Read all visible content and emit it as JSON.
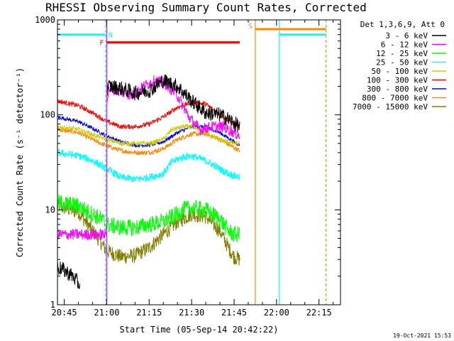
{
  "chart_data": {
    "type": "line",
    "title": "RHESSI Observing Summary Count Rates, Corrected",
    "xlabel": "Start Time (05-Sep-14 20:42:22)",
    "ylabel": "Corrected Count Rate (s⁻¹ detector⁻¹)",
    "yscale": "log",
    "ylim": [
      1,
      1000
    ],
    "xlim_minutes": [
      -2.4,
      97.6
    ],
    "x_ticks": [
      {
        "label": "20:45",
        "min": 0
      },
      {
        "label": "21:00",
        "min": 15
      },
      {
        "label": "21:15",
        "min": 30
      },
      {
        "label": "21:30",
        "min": 45
      },
      {
        "label": "21:45",
        "min": 60
      },
      {
        "label": "22:00",
        "min": 75
      },
      {
        "label": "22:15",
        "min": 90
      }
    ],
    "y_ticks": [
      {
        "label": "1",
        "value": 1
      },
      {
        "label": "10",
        "value": 10
      },
      {
        "label": "100",
        "value": 100
      },
      {
        "label": "1000",
        "value": 1000
      }
    ],
    "legend_title": "Det 1,3,6,9, Att 0",
    "legend_position": "right",
    "series": [
      {
        "name": "3 - 6 keV",
        "color": "#000000",
        "segments": [
          {
            "x": [
              -2.4,
              0,
              3,
              5.5
            ],
            "y": [
              2.5,
              2.3,
              2.0,
              1.6
            ]
          },
          {
            "x": [
              15,
              16,
              20,
              25,
              30,
              35,
              40,
              45,
              50,
              55,
              58,
              62
            ],
            "y": [
              190,
              200,
              190,
              170,
              180,
              230,
              200,
              140,
              105,
              100,
              90,
              75
            ]
          }
        ]
      },
      {
        "name": "6 - 12 keV",
        "color": "#ff00ff",
        "segments": [
          {
            "x": [
              -2.4,
              15
            ],
            "y": [
              5.5,
              5.5
            ]
          },
          {
            "x": [
              15,
              16,
              20,
              24,
              28,
              32,
              36,
              40,
              44,
              48,
              52,
              56,
              60,
              62
            ],
            "y": [
              150,
              190,
              175,
              160,
              200,
              230,
              210,
              160,
              95,
              70,
              75,
              75,
              65,
              60
            ]
          }
        ]
      },
      {
        "name": "12 - 25 keV",
        "color": "#00ff00",
        "segments": [
          {
            "x": [
              -2.4,
              5,
              10,
              13,
              15
            ],
            "y": [
              12,
              11,
              9,
              8,
              7
            ]
          },
          {
            "x": [
              15,
              20,
              25,
              30,
              35,
              40,
              42,
              45,
              50,
              55,
              58,
              60,
              62
            ],
            "y": [
              7,
              6.5,
              6.5,
              7,
              7.5,
              9,
              10,
              10.5,
              10,
              8,
              6,
              5.5,
              5.5
            ]
          }
        ]
      },
      {
        "name": "25 - 50 keV",
        "color": "#00ffff",
        "segments": [
          {
            "x": [
              -2.4,
              5,
              10,
              15,
              20,
              25,
              30,
              35,
              38,
              42,
              45,
              50,
              55,
              58,
              62
            ],
            "y": [
              40,
              37,
              33,
              27,
              22,
              21,
              22,
              24,
              32,
              36,
              37,
              33,
              27,
              24,
              22
            ]
          }
        ]
      },
      {
        "name": "50 - 100 keV",
        "color": "#cccc00",
        "segments": [
          {
            "x": [
              -2.4,
              5,
              10,
              15,
              20,
              25,
              30,
              35,
              38,
              42,
              45,
              50,
              55,
              60,
              62
            ],
            "y": [
              75,
              70,
              62,
              55,
              50,
              50,
              50,
              55,
              70,
              75,
              75,
              65,
              55,
              50,
              50
            ]
          }
        ]
      },
      {
        "name": "100 - 300 keV",
        "color": "#ff0000",
        "segments": [
          {
            "x": [
              -2.4,
              5,
              10,
              15,
              20,
              25,
              30,
              35,
              40,
              45,
              50,
              55,
              60,
              62
            ],
            "y": [
              140,
              125,
              105,
              85,
              75,
              75,
              80,
              95,
              120,
              135,
              130,
              100,
              80,
              75
            ]
          }
        ]
      },
      {
        "name": "300 - 800 keV",
        "color": "#0000ff",
        "segments": [
          {
            "x": [
              -2.4,
              5,
              10,
              15,
              20,
              25,
              30,
              35,
              40,
              45,
              50,
              55,
              60,
              62
            ],
            "y": [
              95,
              85,
              72,
              60,
              52,
              48,
              48,
              52,
              65,
              75,
              75,
              65,
              52,
              48
            ]
          }
        ]
      },
      {
        "name": "800 - 7000 keV",
        "color": "#ff8800",
        "segments": [
          {
            "x": [
              -2.4,
              5,
              10,
              15,
              20,
              25,
              30,
              35,
              40,
              45,
              50,
              55,
              60,
              62
            ],
            "y": [
              70,
              65,
              55,
              47,
              42,
              40,
              40,
              44,
              55,
              63,
              63,
              55,
              45,
              42
            ]
          }
        ]
      },
      {
        "name": "7000 - 15000 keV",
        "color": "#808000",
        "segments": [
          {
            "x": [
              -2.4,
              5,
              10,
              13,
              15,
              20,
              25,
              30,
              35,
              40,
              45,
              50,
              55,
              58,
              60,
              62
            ],
            "y": [
              11,
              9.5,
              6,
              4.5,
              3.7,
              3.2,
              3.3,
              4.0,
              5.5,
              7.5,
              9,
              8.5,
              6,
              4,
              3.2,
              3.0
            ]
          }
        ]
      }
    ],
    "markers": [
      {
        "label": "N",
        "color": "#00ffff",
        "x_start": -2.4,
        "x_end": 14.6,
        "y": 700
      },
      {
        "label": "F",
        "color": "#ff0000",
        "x_start": 15,
        "x_end": 62,
        "y": 580
      },
      {
        "label": "S",
        "color": "#ff8800",
        "x_start": 67.5,
        "x_end": 92.5,
        "y": 800
      },
      {
        "label": "",
        "color": "#00ffff",
        "x_start": 76,
        "x_end": 92.5,
        "y": 700
      }
    ],
    "vlines": [
      {
        "x": -2.4,
        "color": "#00ffff",
        "dash": false
      },
      {
        "x": 14.6,
        "color": "#00ffff",
        "dash": true
      },
      {
        "x": 15,
        "color": "#ff00ff",
        "dash": false
      },
      {
        "x": 67.5,
        "color": "#ff8800",
        "dash": false
      },
      {
        "x": 76,
        "color": "#00ffff",
        "dash": false
      },
      {
        "x": 92.5,
        "color": "#ff8800",
        "dash": true
      }
    ]
  },
  "footer_date": "19-Oct-2021 15:53"
}
